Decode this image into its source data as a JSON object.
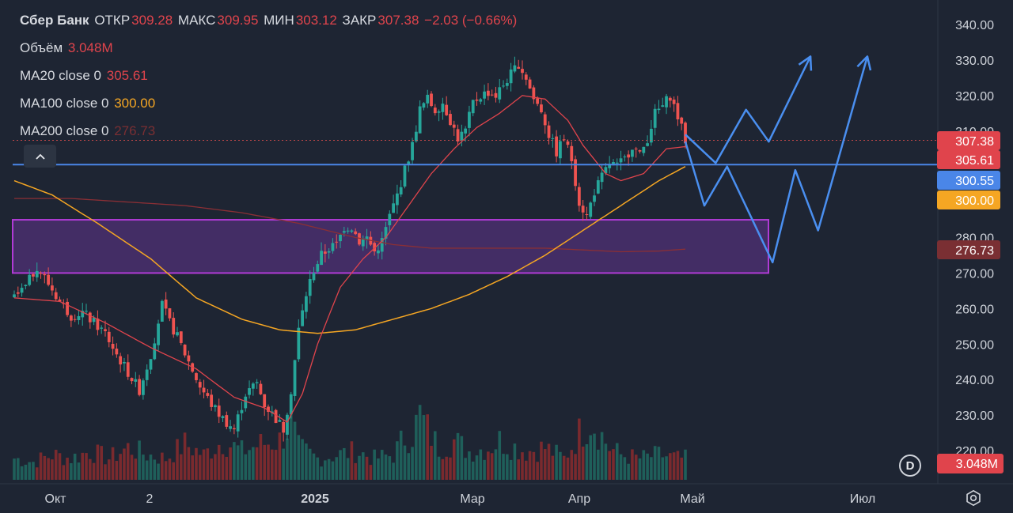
{
  "header": {
    "symbol": "Сбер Банк",
    "open_label": "ОТКР",
    "open_value": "309.28",
    "high_label": "МАКС",
    "high_value": "309.95",
    "low_label": "МИН",
    "low_value": "303.12",
    "close_label": "ЗАКР",
    "close_value": "307.38",
    "change": "−2.03 (−0.66%)"
  },
  "indicators": {
    "volume_label": "Объём",
    "volume_value": "3.048M",
    "ma20_label": "MA20 close 0",
    "ma20_value": "305.61",
    "ma100_label": "MA100 close 0",
    "ma100_value": "300.00",
    "ma200_label": "MA200 close 0",
    "ma200_value": "276.73"
  },
  "badges": {
    "d_label": "D"
  },
  "icons": {
    "collapse": "chevron-up-icon",
    "settings": "gear-icon"
  },
  "colors": {
    "background": "#1e2533",
    "up": "#26a69a",
    "down": "#ef5350",
    "ma20": "#e0444c",
    "ma100": "#f5a623",
    "ma200": "#8b2f35",
    "level_line": "#4a86e8",
    "zone_fill": "#4a2f6e",
    "zone_border": "#b03bd6",
    "forecast": "#4a8ff0"
  },
  "chart_data": {
    "type": "candlestick",
    "y_axis": {
      "ticks": [
        "340.00",
        "330.00",
        "320.00",
        "310.00",
        "280.00",
        "270.00",
        "260.00",
        "250.00",
        "240.00",
        "230.00",
        "220.00"
      ],
      "ylim": [
        216,
        344
      ],
      "position": "right"
    },
    "x_axis": {
      "ticks": [
        "Окт",
        "2",
        "2025",
        "Мар",
        "Апр",
        "Май",
        "Июл"
      ],
      "bold_tick": "2025"
    },
    "price_labels": [
      {
        "value": "307.38",
        "color": "#e0444c"
      },
      {
        "value": "305.61",
        "color": "#e0444c"
      },
      {
        "value": "300.55",
        "color": "#4a86e8"
      },
      {
        "value": "300.00",
        "color": "#f5a623"
      },
      {
        "value": "276.73",
        "color": "#7a2f33"
      }
    ],
    "volume_label": {
      "value": "3.048M",
      "color": "#e0444c"
    },
    "support_line": 300.55,
    "last_close_line": 307.38,
    "zone": {
      "low": 270,
      "high": 285
    },
    "candle_anchors": [
      [
        0,
        263
      ],
      [
        3,
        266
      ],
      [
        6,
        272
      ],
      [
        9,
        267
      ],
      [
        12,
        262
      ],
      [
        15,
        258
      ],
      [
        18,
        259
      ],
      [
        21,
        256
      ],
      [
        24,
        253
      ],
      [
        27,
        247
      ],
      [
        30,
        242
      ],
      [
        33,
        237
      ],
      [
        36,
        247
      ],
      [
        39,
        261
      ],
      [
        41,
        256
      ],
      [
        43,
        252
      ],
      [
        46,
        245
      ],
      [
        49,
        238
      ],
      [
        52,
        233
      ],
      [
        55,
        229
      ],
      [
        58,
        226
      ],
      [
        61,
        236
      ],
      [
        64,
        239
      ],
      [
        66,
        233
      ],
      [
        69,
        229
      ],
      [
        71,
        226
      ],
      [
        73,
        237
      ],
      [
        75,
        254
      ],
      [
        77,
        264
      ],
      [
        79,
        271
      ],
      [
        81,
        275
      ],
      [
        83,
        277
      ],
      [
        85,
        278
      ],
      [
        87,
        283
      ],
      [
        89,
        283
      ],
      [
        91,
        279
      ],
      [
        93,
        280
      ],
      [
        95,
        276
      ],
      [
        97,
        279
      ],
      [
        99,
        286
      ],
      [
        101,
        292
      ],
      [
        103,
        299
      ],
      [
        105,
        306
      ],
      [
        107,
        316
      ],
      [
        109,
        319
      ],
      [
        111,
        316
      ],
      [
        113,
        318
      ],
      [
        115,
        313
      ],
      [
        117,
        308
      ],
      [
        119,
        310
      ],
      [
        121,
        318
      ],
      [
        123,
        320
      ],
      [
        125,
        321
      ],
      [
        127,
        320
      ],
      [
        129,
        323
      ],
      [
        131,
        326
      ],
      [
        133,
        329
      ],
      [
        135,
        325
      ],
      [
        137,
        319
      ],
      [
        139,
        316
      ],
      [
        141,
        309
      ],
      [
        143,
        304
      ],
      [
        145,
        308
      ],
      [
        147,
        302
      ],
      [
        149,
        290
      ],
      [
        151,
        286
      ],
      [
        153,
        293
      ],
      [
        155,
        297
      ],
      [
        157,
        301
      ],
      [
        159,
        300
      ],
      [
        161,
        302
      ],
      [
        163,
        306
      ],
      [
        165,
        303
      ],
      [
        167,
        308
      ],
      [
        169,
        315
      ],
      [
        171,
        317
      ],
      [
        173,
        320
      ],
      [
        175,
        314
      ],
      [
        177,
        307.38
      ]
    ],
    "ma20": [
      [
        0,
        263
      ],
      [
        12,
        262
      ],
      [
        24,
        256
      ],
      [
        36,
        249
      ],
      [
        48,
        243
      ],
      [
        58,
        235
      ],
      [
        66,
        232
      ],
      [
        72,
        228
      ],
      [
        76,
        236
      ],
      [
        80,
        250
      ],
      [
        86,
        266
      ],
      [
        92,
        274
      ],
      [
        98,
        280
      ],
      [
        104,
        289
      ],
      [
        110,
        298
      ],
      [
        116,
        305
      ],
      [
        122,
        311
      ],
      [
        128,
        315
      ],
      [
        134,
        320
      ],
      [
        140,
        319
      ],
      [
        146,
        313
      ],
      [
        150,
        306
      ],
      [
        156,
        298
      ],
      [
        160,
        296
      ],
      [
        166,
        298
      ],
      [
        172,
        305
      ],
      [
        177,
        305.61
      ]
    ],
    "ma100": [
      [
        0,
        296
      ],
      [
        10,
        292
      ],
      [
        22,
        284
      ],
      [
        36,
        274
      ],
      [
        48,
        263
      ],
      [
        60,
        257
      ],
      [
        70,
        254
      ],
      [
        80,
        253
      ],
      [
        90,
        254
      ],
      [
        100,
        257
      ],
      [
        110,
        260
      ],
      [
        120,
        264
      ],
      [
        130,
        269
      ],
      [
        140,
        275
      ],
      [
        150,
        282
      ],
      [
        160,
        289
      ],
      [
        170,
        296
      ],
      [
        177,
        300
      ]
    ],
    "ma200": [
      [
        0,
        291
      ],
      [
        15,
        291
      ],
      [
        30,
        290
      ],
      [
        45,
        289
      ],
      [
        60,
        287
      ],
      [
        75,
        284
      ],
      [
        90,
        280
      ],
      [
        100,
        278
      ],
      [
        110,
        277
      ],
      [
        120,
        277
      ],
      [
        130,
        277
      ],
      [
        140,
        277
      ],
      [
        150,
        276.5
      ],
      [
        160,
        276
      ],
      [
        170,
        276.2
      ],
      [
        177,
        276.73
      ]
    ],
    "volume": [
      [
        0,
        0.3
      ],
      [
        5,
        0.25
      ],
      [
        10,
        0.35
      ],
      [
        15,
        0.3
      ],
      [
        20,
        0.4
      ],
      [
        25,
        0.3
      ],
      [
        30,
        0.45
      ],
      [
        35,
        0.35
      ],
      [
        40,
        0.3
      ],
      [
        45,
        0.5
      ],
      [
        50,
        0.35
      ],
      [
        55,
        0.55
      ],
      [
        60,
        0.4
      ],
      [
        65,
        0.5
      ],
      [
        70,
        0.55
      ],
      [
        73,
        0.8
      ],
      [
        75,
        0.45
      ],
      [
        80,
        0.3
      ],
      [
        85,
        0.35
      ],
      [
        90,
        0.4
      ],
      [
        95,
        0.3
      ],
      [
        100,
        0.35
      ],
      [
        103,
        0.6
      ],
      [
        105,
        0.65
      ],
      [
        107,
        0.9
      ],
      [
        109,
        0.7
      ],
      [
        112,
        0.45
      ],
      [
        116,
        0.55
      ],
      [
        120,
        0.4
      ],
      [
        125,
        0.45
      ],
      [
        128,
        0.55
      ],
      [
        130,
        0.5
      ],
      [
        135,
        0.4
      ],
      [
        140,
        0.45
      ],
      [
        145,
        0.3
      ],
      [
        149,
        0.65
      ],
      [
        152,
        0.85
      ],
      [
        154,
        0.7
      ],
      [
        157,
        0.45
      ],
      [
        160,
        0.35
      ],
      [
        165,
        0.3
      ],
      [
        170,
        0.35
      ],
      [
        175,
        0.3
      ],
      [
        177,
        0.3
      ]
    ],
    "forecast_paths": [
      [
        [
          177,
          309
        ],
        [
          185,
          301
        ],
        [
          193,
          316
        ],
        [
          199,
          307
        ],
        [
          210,
          331
        ]
      ],
      [
        [
          177,
          307
        ],
        [
          182,
          289
        ],
        [
          188,
          300
        ],
        [
          200,
          273
        ],
        [
          206,
          299
        ],
        [
          212,
          282
        ],
        [
          225,
          331
        ]
      ]
    ]
  }
}
